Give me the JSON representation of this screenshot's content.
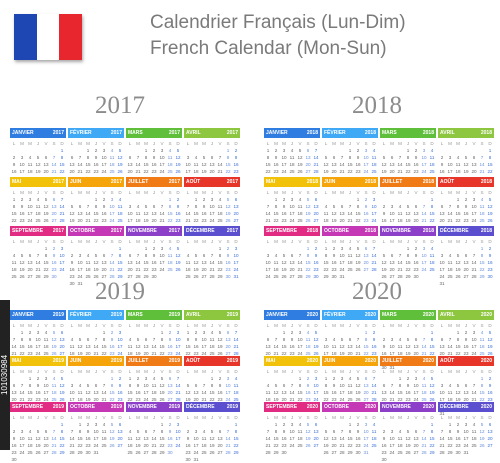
{
  "header": {
    "title_fr": "Calendrier Français (Lun-Dim)",
    "title_en": "French Calendar (Mon-Sun)"
  },
  "flag": {
    "colors": [
      "#1f47b3",
      "#ffffff",
      "#e8262e"
    ]
  },
  "weekday_initials": [
    "L",
    "M",
    "M",
    "J",
    "V",
    "S",
    "D"
  ],
  "months": [
    {
      "name": "JANVIER",
      "color": "#2f7de1"
    },
    {
      "name": "FÉVRIER",
      "color": "#3fa9f5"
    },
    {
      "name": "MARS",
      "color": "#5fbf3a"
    },
    {
      "name": "AVRIL",
      "color": "#8dc63f"
    },
    {
      "name": "MAI",
      "color": "#f2c20a"
    },
    {
      "name": "JUIN",
      "color": "#f5a40a"
    },
    {
      "name": "JUILLET",
      "color": "#f07b16"
    },
    {
      "name": "AOÛT",
      "color": "#e8352a"
    },
    {
      "name": "SEPTEMBRE",
      "color": "#e22c83"
    },
    {
      "name": "OCTOBRE",
      "color": "#c437b5"
    },
    {
      "name": "NOVEMBRE",
      "color": "#8c3fc9"
    },
    {
      "name": "DÉCEMBRE",
      "color": "#5b4fd0"
    }
  ],
  "years": [
    {
      "label": "2017",
      "first_weekday": 6
    },
    {
      "label": "2018",
      "first_weekday": 0
    },
    {
      "label": "2019",
      "first_weekday": 1
    },
    {
      "label": "2020",
      "first_weekday": 2
    }
  ],
  "watermark": "101030984"
}
